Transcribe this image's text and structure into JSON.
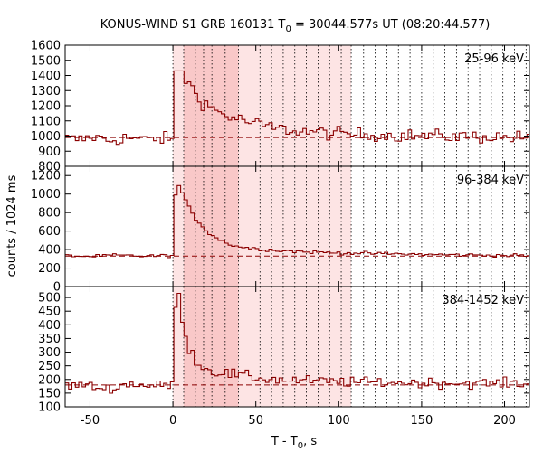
{
  "chart_data": {
    "type": "line",
    "title": "KONUS-WIND S1 GRB 160131 T",
    "title_subscript": "0",
    "title_suffix": " = 30044.577s UT (08:20:44.577)",
    "xlabel": "T - T",
    "xlabel_subscript": "0",
    "xlabel_suffix": ", s",
    "ylabel": "counts / 1024 ms",
    "xlim": [
      -65,
      215
    ],
    "x_ticks": [
      -50,
      0,
      50,
      100,
      150,
      200
    ],
    "x_tick_labels": [
      "-50",
      "0",
      "50",
      "100",
      "150",
      "200"
    ],
    "bin_width_s": 2.048,
    "step_style": "histogram",
    "line_color": "#8b0000",
    "trigger_time_s": 0,
    "shaded_interval_light_s": [
      0,
      107.5
    ],
    "shaded_interval_dark_s": [
      6.5,
      39.5
    ],
    "shade_light_color": "#fde4e4",
    "shade_dark_color": "#f9c8c8",
    "vertical_dotted_lines_s": [
      6.5,
      13.5,
      18.5,
      23.5,
      31.5,
      39.5,
      52.5,
      59.5,
      66.5,
      73.5,
      80.5,
      87.5,
      94.5,
      101.5,
      107.5,
      115,
      122,
      129,
      136,
      143,
      150,
      157,
      164,
      171,
      178,
      185,
      192,
      199,
      206,
      213
    ],
    "panels": [
      {
        "label": "25-96 keV",
        "ylim": [
          800,
          1600
        ],
        "y_ticks": [
          800,
          900,
          1000,
          1100,
          1200,
          1300,
          1400,
          1500,
          1600
        ],
        "y_tick_labels": [
          "800",
          "900",
          "1000",
          "1100",
          "1200",
          "1300",
          "1400",
          "1500",
          "1600"
        ],
        "background_level": 990,
        "profile": {
          "pre": [
            [
              -65,
              985
            ],
            [
              -56,
              975
            ],
            [
              -48,
              995
            ],
            [
              -38,
              970
            ],
            [
              -28,
              990
            ],
            [
              -18,
              975
            ],
            [
              -10,
              985
            ],
            [
              -2,
              980
            ]
          ],
          "burst": [
            [
              0,
              1020
            ],
            [
              0.5,
              1300
            ],
            [
              2,
              1440
            ],
            [
              4,
              1450
            ],
            [
              6,
              1420
            ],
            [
              8,
              1370
            ],
            [
              12,
              1310
            ],
            [
              16,
              1250
            ],
            [
              20,
              1210
            ],
            [
              25,
              1175
            ],
            [
              30,
              1145
            ],
            [
              35,
              1125
            ],
            [
              40,
              1110
            ],
            [
              50,
              1080
            ],
            [
              60,
              1055
            ],
            [
              70,
              1040
            ],
            [
              80,
              1030
            ],
            [
              100,
              1015
            ],
            [
              130,
              1005
            ],
            [
              160,
              1000
            ],
            [
              215,
              990
            ]
          ]
        },
        "noise_amplitude": 35
      },
      {
        "label": "96-384 keV",
        "ylim": [
          0,
          1300
        ],
        "y_ticks": [
          0,
          200,
          400,
          600,
          800,
          1000,
          1200
        ],
        "y_tick_labels": [
          "0",
          "200",
          "400",
          "600",
          "800",
          "1000",
          "1200"
        ],
        "background_level": 330,
        "profile": {
          "pre": [
            [
              -65,
              335
            ],
            [
              -50,
              325
            ],
            [
              -35,
              340
            ],
            [
              -20,
              330
            ],
            [
              -2,
              335
            ]
          ],
          "burst": [
            [
              0,
              420
            ],
            [
              0.5,
              800
            ],
            [
              2,
              1060
            ],
            [
              4,
              1090
            ],
            [
              6,
              1000
            ],
            [
              8,
              900
            ],
            [
              12,
              780
            ],
            [
              16,
              690
            ],
            [
              20,
              610
            ],
            [
              25,
              540
            ],
            [
              30,
              490
            ],
            [
              35,
              455
            ],
            [
              40,
              430
            ],
            [
              50,
              410
            ],
            [
              60,
              395
            ],
            [
              70,
              385
            ],
            [
              80,
              375
            ],
            [
              100,
              365
            ],
            [
              130,
              355
            ],
            [
              160,
              345
            ],
            [
              215,
              335
            ]
          ]
        },
        "noise_amplitude": 14
      },
      {
        "label": "384-1452 keV",
        "ylim": [
          100,
          540
        ],
        "y_ticks": [
          100,
          150,
          200,
          250,
          300,
          350,
          400,
          450,
          500
        ],
        "y_tick_labels": [
          "100",
          "150",
          "200",
          "250",
          "300",
          "350",
          "400",
          "450",
          "500"
        ],
        "background_level": 180,
        "profile": {
          "pre": [
            [
              -65,
              175
            ],
            [
              -55,
              180
            ],
            [
              -40,
              165
            ],
            [
              -25,
              185
            ],
            [
              -12,
              175
            ],
            [
              -2,
              180
            ]
          ],
          "burst": [
            [
              0,
              200
            ],
            [
              0.5,
              400
            ],
            [
              2,
              500
            ],
            [
              4,
              490
            ],
            [
              6,
              420
            ],
            [
              8,
              360
            ],
            [
              10,
              310
            ],
            [
              14,
              270
            ],
            [
              18,
              245
            ],
            [
              22,
              235
            ],
            [
              28,
              225
            ],
            [
              35,
              220
            ],
            [
              45,
              210
            ],
            [
              60,
              200
            ],
            [
              80,
              195
            ],
            [
              110,
              190
            ],
            [
              150,
              188
            ],
            [
              215,
              185
            ]
          ]
        },
        "noise_amplitude": 15
      }
    ]
  }
}
